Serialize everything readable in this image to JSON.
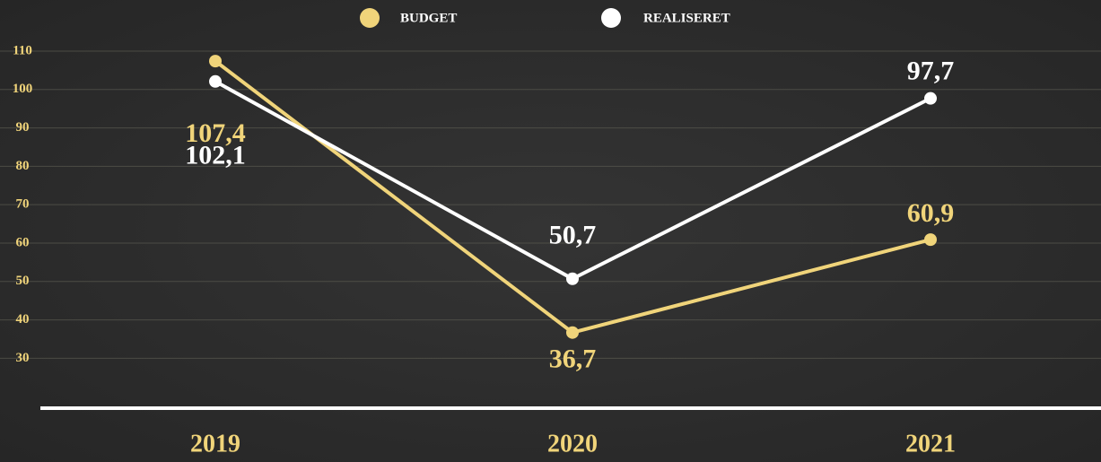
{
  "chart_data": {
    "type": "line",
    "categories": [
      "2019",
      "2020",
      "2021"
    ],
    "series": [
      {
        "name": "BUDGET",
        "color": "#f0d47a",
        "values": [
          107.4,
          36.7,
          60.9
        ],
        "value_labels": [
          "107,4",
          "36,7",
          "60,9"
        ]
      },
      {
        "name": "REALISERET",
        "color": "#ffffff",
        "values": [
          102.1,
          50.7,
          97.7
        ],
        "value_labels": [
          "102,1",
          "50,7",
          "97,7"
        ]
      }
    ],
    "ylim": [
      17,
      110
    ],
    "yticks": [
      30,
      40,
      50,
      60,
      70,
      80,
      90,
      100,
      110
    ],
    "grid": true
  }
}
